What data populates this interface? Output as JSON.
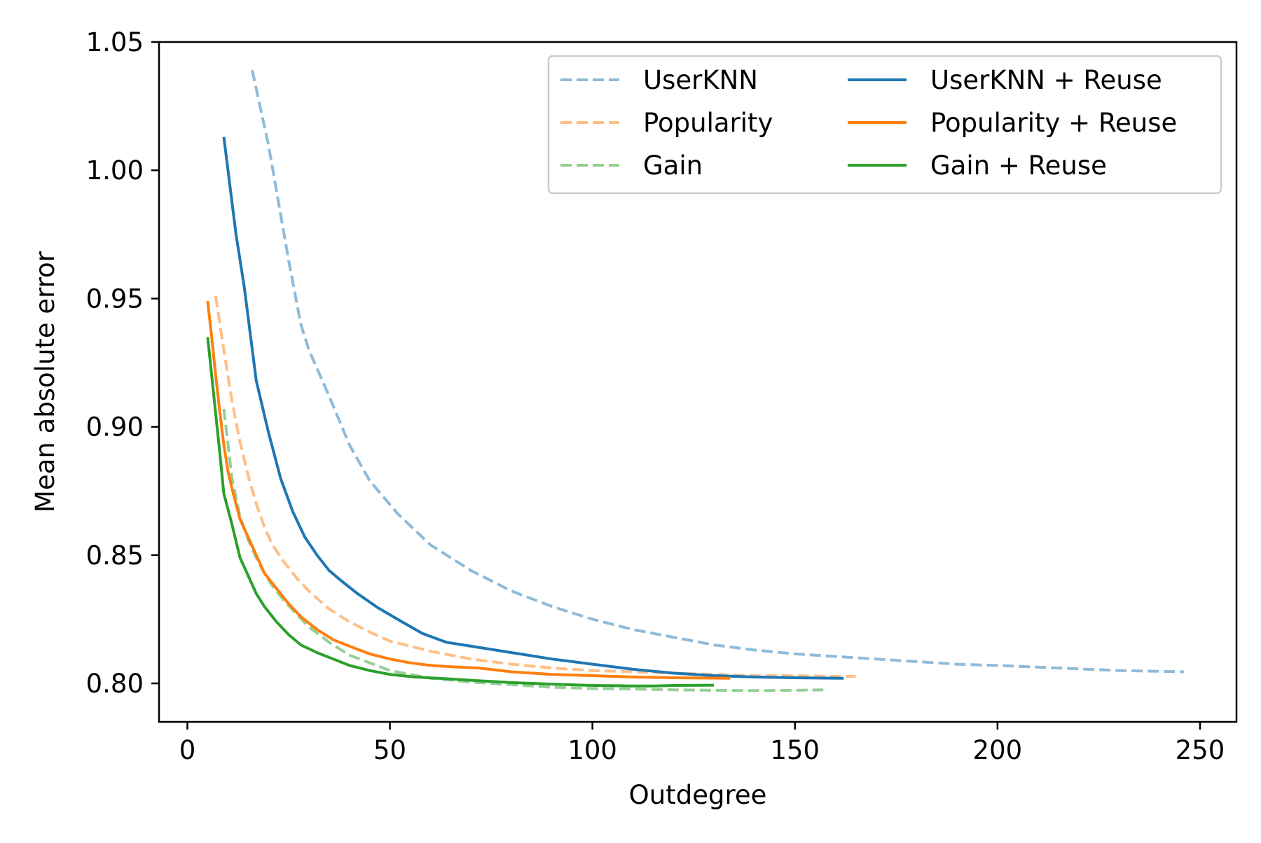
{
  "chart_data": {
    "type": "line",
    "title": "",
    "xlabel": "Outdegree",
    "ylabel": "Mean absolute error",
    "xlim": [
      -7,
      259
    ],
    "ylim": [
      0.785,
      1.05
    ],
    "xticks": [
      "0",
      "50",
      "100",
      "150",
      "200",
      "250"
    ],
    "yticks": [
      "0.80",
      "0.85",
      "0.90",
      "0.95",
      "1.00",
      "1.05"
    ],
    "grid": false,
    "legend_position": "top-right",
    "legend_columns": 2,
    "series": [
      {
        "name": "UserKNN",
        "color": "#1f77b4",
        "dashed": true,
        "faded": true,
        "x": [
          16,
          20,
          25,
          28,
          30,
          35,
          40,
          45,
          52,
          60,
          70,
          80,
          90,
          100,
          110,
          120,
          130,
          140,
          150,
          160,
          170,
          180,
          190,
          200,
          215,
          230,
          246
        ],
        "y": [
          1.039,
          1.01,
          0.965,
          0.94,
          0.93,
          0.912,
          0.893,
          0.879,
          0.866,
          0.854,
          0.844,
          0.836,
          0.83,
          0.825,
          0.821,
          0.818,
          0.815,
          0.813,
          0.8115,
          0.8105,
          0.8095,
          0.8085,
          0.8075,
          0.807,
          0.806,
          0.805,
          0.8045
        ]
      },
      {
        "name": "Popularity",
        "color": "#ff7f0e",
        "dashed": true,
        "faded": true,
        "x": [
          7,
          9,
          11,
          13,
          15,
          17,
          19,
          21,
          24,
          27,
          30,
          35,
          40,
          45,
          50,
          60,
          70,
          80,
          90,
          100,
          110,
          120,
          130,
          140,
          150,
          158,
          165
        ],
        "y": [
          0.951,
          0.93,
          0.91,
          0.894,
          0.881,
          0.87,
          0.861,
          0.854,
          0.847,
          0.841,
          0.836,
          0.829,
          0.824,
          0.82,
          0.8165,
          0.8125,
          0.8095,
          0.8075,
          0.806,
          0.805,
          0.8045,
          0.804,
          0.8035,
          0.803,
          0.803,
          0.8028,
          0.8027
        ]
      },
      {
        "name": "Gain",
        "color": "#2ca02c",
        "dashed": true,
        "faded": true,
        "x": [
          9,
          11,
          13,
          15,
          17,
          19,
          21,
          24,
          27,
          30,
          35,
          40,
          45,
          50,
          60,
          70,
          80,
          90,
          100,
          110,
          120,
          130,
          140,
          150,
          157
        ],
        "y": [
          0.907,
          0.88,
          0.865,
          0.856,
          0.849,
          0.843,
          0.838,
          0.832,
          0.827,
          0.822,
          0.816,
          0.811,
          0.808,
          0.805,
          0.802,
          0.8005,
          0.7995,
          0.7985,
          0.798,
          0.7978,
          0.7975,
          0.7973,
          0.7972,
          0.7973,
          0.7975
        ]
      },
      {
        "name": "UserKNN + Reuse",
        "color": "#1f77b4",
        "dashed": false,
        "faded": false,
        "x": [
          9,
          12,
          14,
          17,
          20,
          23,
          26,
          29,
          32,
          35,
          38,
          42,
          47,
          53,
          58,
          64,
          70,
          76,
          82,
          90,
          100,
          110,
          120,
          130,
          140,
          150,
          162
        ],
        "y": [
          1.013,
          0.975,
          0.955,
          0.918,
          0.898,
          0.88,
          0.867,
          0.857,
          0.85,
          0.844,
          0.84,
          0.835,
          0.8295,
          0.824,
          0.8195,
          0.816,
          0.8145,
          0.813,
          0.8115,
          0.8095,
          0.8075,
          0.8055,
          0.804,
          0.803,
          0.8025,
          0.8022,
          0.802
        ]
      },
      {
        "name": "Popularity + Reuse",
        "color": "#ff7f0e",
        "dashed": false,
        "faded": false,
        "x": [
          5,
          6,
          7,
          8,
          9,
          10,
          11,
          12,
          13,
          15,
          17,
          19,
          22,
          25,
          28,
          32,
          36,
          40,
          45,
          50,
          55,
          60,
          65,
          72,
          80,
          90,
          100,
          110,
          120,
          134
        ],
        "y": [
          0.949,
          0.935,
          0.92,
          0.906,
          0.893,
          0.883,
          0.876,
          0.87,
          0.864,
          0.857,
          0.85,
          0.843,
          0.837,
          0.831,
          0.826,
          0.821,
          0.817,
          0.8145,
          0.8115,
          0.8095,
          0.808,
          0.807,
          0.8065,
          0.806,
          0.8045,
          0.8035,
          0.803,
          0.8025,
          0.8022,
          0.802
        ]
      },
      {
        "name": "Gain + Reuse",
        "color": "#2ca02c",
        "dashed": false,
        "faded": false,
        "x": [
          5,
          6,
          7,
          8,
          9,
          10,
          11,
          13,
          15,
          17,
          19,
          22,
          25,
          28,
          32,
          36,
          40,
          45,
          50,
          56,
          62,
          70,
          80,
          90,
          100,
          110,
          115,
          120,
          130
        ],
        "y": [
          0.935,
          0.92,
          0.905,
          0.89,
          0.874,
          0.868,
          0.862,
          0.849,
          0.842,
          0.835,
          0.83,
          0.824,
          0.819,
          0.815,
          0.812,
          0.8095,
          0.807,
          0.805,
          0.8035,
          0.8025,
          0.802,
          0.8012,
          0.8003,
          0.7997,
          0.7992,
          0.799,
          0.799,
          0.7992,
          0.7993
        ]
      }
    ]
  }
}
